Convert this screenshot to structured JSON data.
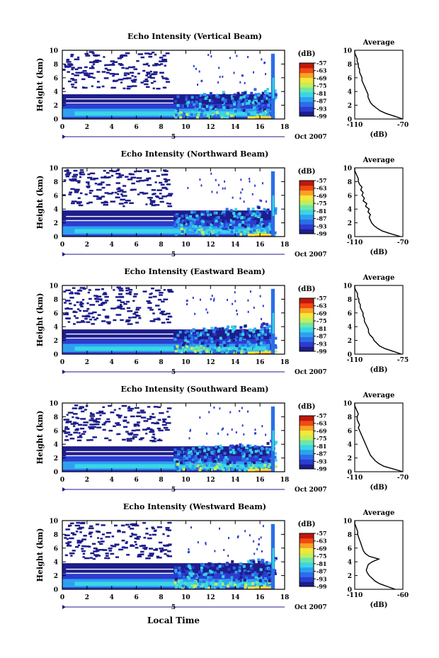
{
  "figure": {
    "xlabel": "Local Time",
    "colors": {
      "colorbar": [
        "#1d1d8c",
        "#2c3ccf",
        "#2a6ee8",
        "#2fa0f0",
        "#38d6e6",
        "#6fe6a8",
        "#c3ee5a",
        "#f6e63a",
        "#f9a225",
        "#f04a12",
        "#c0180c"
      ],
      "profile_line": "#000000",
      "axes": "#000000"
    }
  },
  "chart_data": [
    {
      "type": "heatmap",
      "title": "Echo Intensity (Vertical Beam)",
      "ylabel": "Height (km)",
      "x_ticks": [
        "0",
        "2",
        "4",
        "6",
        "8",
        "10",
        "12",
        "14",
        "16",
        "18"
      ],
      "y_ticks": [
        "0",
        "2",
        "4",
        "6",
        "8",
        "10"
      ],
      "xlim": [
        0,
        18
      ],
      "ylim": [
        0,
        10
      ],
      "date_marker": {
        "label": "5",
        "date": "Oct 2007"
      },
      "colorbar": {
        "unit": "(dB)",
        "ticks": [
          "-57",
          "-63",
          "-69",
          "-75",
          "-81",
          "-87",
          "-93",
          "-99"
        ],
        "range": [
          -99,
          -57
        ]
      },
      "profile": {
        "title": "Average",
        "xlabel": "(dB)",
        "x_ticks": [
          "-110",
          "-70"
        ],
        "xlim": [
          -110,
          -70
        ],
        "y_ticks": [
          "0",
          "2",
          "4",
          "6",
          "8",
          "10"
        ],
        "ylim": [
          0,
          10
        ],
        "points": [
          [
            -70,
            0
          ],
          [
            -77,
            0.4
          ],
          [
            -84,
            0.8
          ],
          [
            -89,
            1.2
          ],
          [
            -92,
            1.6
          ],
          [
            -95,
            2.0
          ],
          [
            -97,
            2.4
          ],
          [
            -98,
            2.8
          ],
          [
            -99,
            3.2
          ],
          [
            -99,
            3.6
          ],
          [
            -100,
            4.0
          ],
          [
            -101,
            4.4
          ],
          [
            -102,
            4.8
          ],
          [
            -103,
            5.2
          ],
          [
            -104,
            5.6
          ],
          [
            -104,
            6.0
          ],
          [
            -105,
            6.4
          ],
          [
            -106,
            6.8
          ],
          [
            -106,
            7.2
          ],
          [
            -107,
            7.6
          ],
          [
            -107,
            8.0
          ],
          [
            -108,
            8.4
          ],
          [
            -108,
            8.8
          ],
          [
            -109,
            9.2
          ],
          [
            -110,
            9.6
          ],
          [
            -110,
            10
          ]
        ]
      }
    },
    {
      "type": "heatmap",
      "title": "Echo Intensity (Northward Beam)",
      "ylabel": "Height (km)",
      "x_ticks": [
        "0",
        "2",
        "4",
        "6",
        "8",
        "10",
        "12",
        "14",
        "16",
        "18"
      ],
      "y_ticks": [
        "0",
        "2",
        "4",
        "6",
        "8",
        "10"
      ],
      "xlim": [
        0,
        18
      ],
      "ylim": [
        0,
        10
      ],
      "date_marker": {
        "label": "5",
        "date": "Oct 2007"
      },
      "colorbar": {
        "unit": "(dB)",
        "ticks": [
          "-57",
          "-63",
          "-69",
          "-75",
          "-81",
          "-87",
          "-93",
          "-99"
        ],
        "range": [
          -99,
          -57
        ]
      },
      "profile": {
        "title": "Average",
        "xlabel": "(dB)",
        "x_ticks": [
          "-110",
          "-70"
        ],
        "xlim": [
          -110,
          -70
        ],
        "y_ticks": [
          "0",
          "2",
          "4",
          "6",
          "8",
          "10"
        ],
        "ylim": [
          0,
          10
        ],
        "points": [
          [
            -72,
            0
          ],
          [
            -80,
            0.4
          ],
          [
            -87,
            0.8
          ],
          [
            -91,
            1.2
          ],
          [
            -94,
            1.6
          ],
          [
            -96,
            2.0
          ],
          [
            -97,
            2.4
          ],
          [
            -98,
            2.8
          ],
          [
            -97,
            3.2
          ],
          [
            -99,
            3.6
          ],
          [
            -98,
            4.0
          ],
          [
            -101,
            4.4
          ],
          [
            -100,
            4.8
          ],
          [
            -103,
            5.2
          ],
          [
            -102,
            5.6
          ],
          [
            -104,
            6.0
          ],
          [
            -103,
            6.4
          ],
          [
            -105,
            6.8
          ],
          [
            -104,
            7.2
          ],
          [
            -106,
            7.6
          ],
          [
            -107,
            8.0
          ],
          [
            -107,
            8.4
          ],
          [
            -108,
            8.8
          ],
          [
            -109,
            9.2
          ],
          [
            -110,
            9.6
          ],
          [
            -110,
            10
          ]
        ]
      }
    },
    {
      "type": "heatmap",
      "title": "Echo Intensity (Eastward Beam)",
      "ylabel": "Height (km)",
      "x_ticks": [
        "0",
        "2",
        "4",
        "6",
        "8",
        "10",
        "12",
        "14",
        "16",
        "18"
      ],
      "y_ticks": [
        "0",
        "2",
        "4",
        "6",
        "8",
        "10"
      ],
      "xlim": [
        0,
        18
      ],
      "ylim": [
        0,
        10
      ],
      "date_marker": {
        "label": "5",
        "date": "Oct 2007"
      },
      "colorbar": {
        "unit": "(dB)",
        "ticks": [
          "-57",
          "-63",
          "-69",
          "-75",
          "-81",
          "-87",
          "-93",
          "-99"
        ],
        "range": [
          -99,
          -57
        ]
      },
      "profile": {
        "title": "Average",
        "xlabel": "(dB)",
        "x_ticks": [
          "-110",
          "-75"
        ],
        "xlim": [
          -110,
          -75
        ],
        "y_ticks": [
          "0",
          "2",
          "4",
          "6",
          "8",
          "10"
        ],
        "ylim": [
          0,
          10
        ],
        "points": [
          [
            -76,
            0
          ],
          [
            -82,
            0.4
          ],
          [
            -88,
            0.8
          ],
          [
            -92,
            1.2
          ],
          [
            -94,
            1.6
          ],
          [
            -96,
            2.0
          ],
          [
            -97,
            2.4
          ],
          [
            -99,
            2.8
          ],
          [
            -100,
            3.2
          ],
          [
            -100,
            3.6
          ],
          [
            -101,
            4.0
          ],
          [
            -102,
            4.4
          ],
          [
            -103,
            4.8
          ],
          [
            -103,
            5.2
          ],
          [
            -104,
            5.6
          ],
          [
            -104,
            6.0
          ],
          [
            -105,
            6.4
          ],
          [
            -106,
            6.8
          ],
          [
            -106,
            7.2
          ],
          [
            -107,
            7.6
          ],
          [
            -107,
            8.0
          ],
          [
            -108,
            8.4
          ],
          [
            -108,
            8.8
          ],
          [
            -109,
            9.2
          ],
          [
            -110,
            9.6
          ],
          [
            -110,
            10
          ]
        ]
      }
    },
    {
      "type": "heatmap",
      "title": "Echo Intensity (Southward Beam)",
      "ylabel": "Height (km)",
      "x_ticks": [
        "0",
        "2",
        "4",
        "6",
        "8",
        "10",
        "12",
        "14",
        "16",
        "18"
      ],
      "y_ticks": [
        "0",
        "2",
        "4",
        "6",
        "8",
        "10"
      ],
      "xlim": [
        0,
        18
      ],
      "ylim": [
        0,
        10
      ],
      "date_marker": {
        "label": "5",
        "date": "Oct 2007"
      },
      "colorbar": {
        "unit": "(dB)",
        "ticks": [
          "-57",
          "-63",
          "-69",
          "-75",
          "-81",
          "-87",
          "-93",
          "-99"
        ],
        "range": [
          -99,
          -57
        ]
      },
      "profile": {
        "title": "Average",
        "xlabel": "(dB)",
        "x_ticks": [
          "-110",
          "-70"
        ],
        "xlim": [
          -110,
          -70
        ],
        "y_ticks": [
          "0",
          "2",
          "4",
          "6",
          "8",
          "10"
        ],
        "ylim": [
          0,
          10
        ],
        "points": [
          [
            -70,
            0
          ],
          [
            -78,
            0.4
          ],
          [
            -86,
            0.8
          ],
          [
            -90,
            1.2
          ],
          [
            -93,
            1.6
          ],
          [
            -95,
            2.0
          ],
          [
            -97,
            2.4
          ],
          [
            -98,
            2.8
          ],
          [
            -99,
            3.2
          ],
          [
            -100,
            3.6
          ],
          [
            -101,
            4.0
          ],
          [
            -102,
            4.4
          ],
          [
            -103,
            4.8
          ],
          [
            -104,
            5.2
          ],
          [
            -105,
            5.6
          ],
          [
            -106,
            6.0
          ],
          [
            -107,
            6.4
          ],
          [
            -106,
            6.8
          ],
          [
            -107,
            7.2
          ],
          [
            -108,
            7.6
          ],
          [
            -108,
            8.0
          ],
          [
            -107,
            8.4
          ],
          [
            -108,
            8.8
          ],
          [
            -109,
            9.2
          ],
          [
            -110,
            9.6
          ],
          [
            -110,
            10
          ]
        ]
      }
    },
    {
      "type": "heatmap",
      "title": "Echo Intensity (Westward Beam)",
      "ylabel": "Height (km)",
      "x_ticks": [
        "0",
        "2",
        "4",
        "6",
        "8",
        "10",
        "12",
        "14",
        "16",
        "18"
      ],
      "y_ticks": [
        "0",
        "2",
        "4",
        "6",
        "8",
        "10"
      ],
      "xlim": [
        0,
        18
      ],
      "ylim": [
        0,
        10
      ],
      "date_marker": {
        "label": "5",
        "date": "Oct 2007"
      },
      "colorbar": {
        "unit": "(dB)",
        "ticks": [
          "-57",
          "-63",
          "-69",
          "-75",
          "-81",
          "-87",
          "-93",
          "-99"
        ],
        "range": [
          -99,
          -57
        ]
      },
      "profile": {
        "title": "Average",
        "xlabel": "(dB)",
        "x_ticks": [
          "-110",
          "-60"
        ],
        "xlim": [
          -110,
          -60
        ],
        "y_ticks": [
          "0",
          "2",
          "4",
          "6",
          "8",
          "10"
        ],
        "ylim": [
          0,
          10
        ],
        "points": [
          [
            -68,
            0
          ],
          [
            -76,
            0.4
          ],
          [
            -84,
            0.8
          ],
          [
            -89,
            1.2
          ],
          [
            -92,
            1.6
          ],
          [
            -95,
            2.0
          ],
          [
            -97,
            2.4
          ],
          [
            -98,
            2.8
          ],
          [
            -97,
            3.2
          ],
          [
            -96,
            3.6
          ],
          [
            -92,
            4.0
          ],
          [
            -85,
            4.4
          ],
          [
            -95,
            4.8
          ],
          [
            -99,
            5.2
          ],
          [
            -101,
            5.6
          ],
          [
            -102,
            6.0
          ],
          [
            -103,
            6.4
          ],
          [
            -104,
            6.8
          ],
          [
            -105,
            7.2
          ],
          [
            -106,
            7.6
          ],
          [
            -107,
            8.0
          ],
          [
            -107,
            8.4
          ],
          [
            -108,
            8.8
          ],
          [
            -109,
            9.2
          ],
          [
            -110,
            9.6
          ],
          [
            -110,
            10
          ]
        ]
      }
    }
  ]
}
